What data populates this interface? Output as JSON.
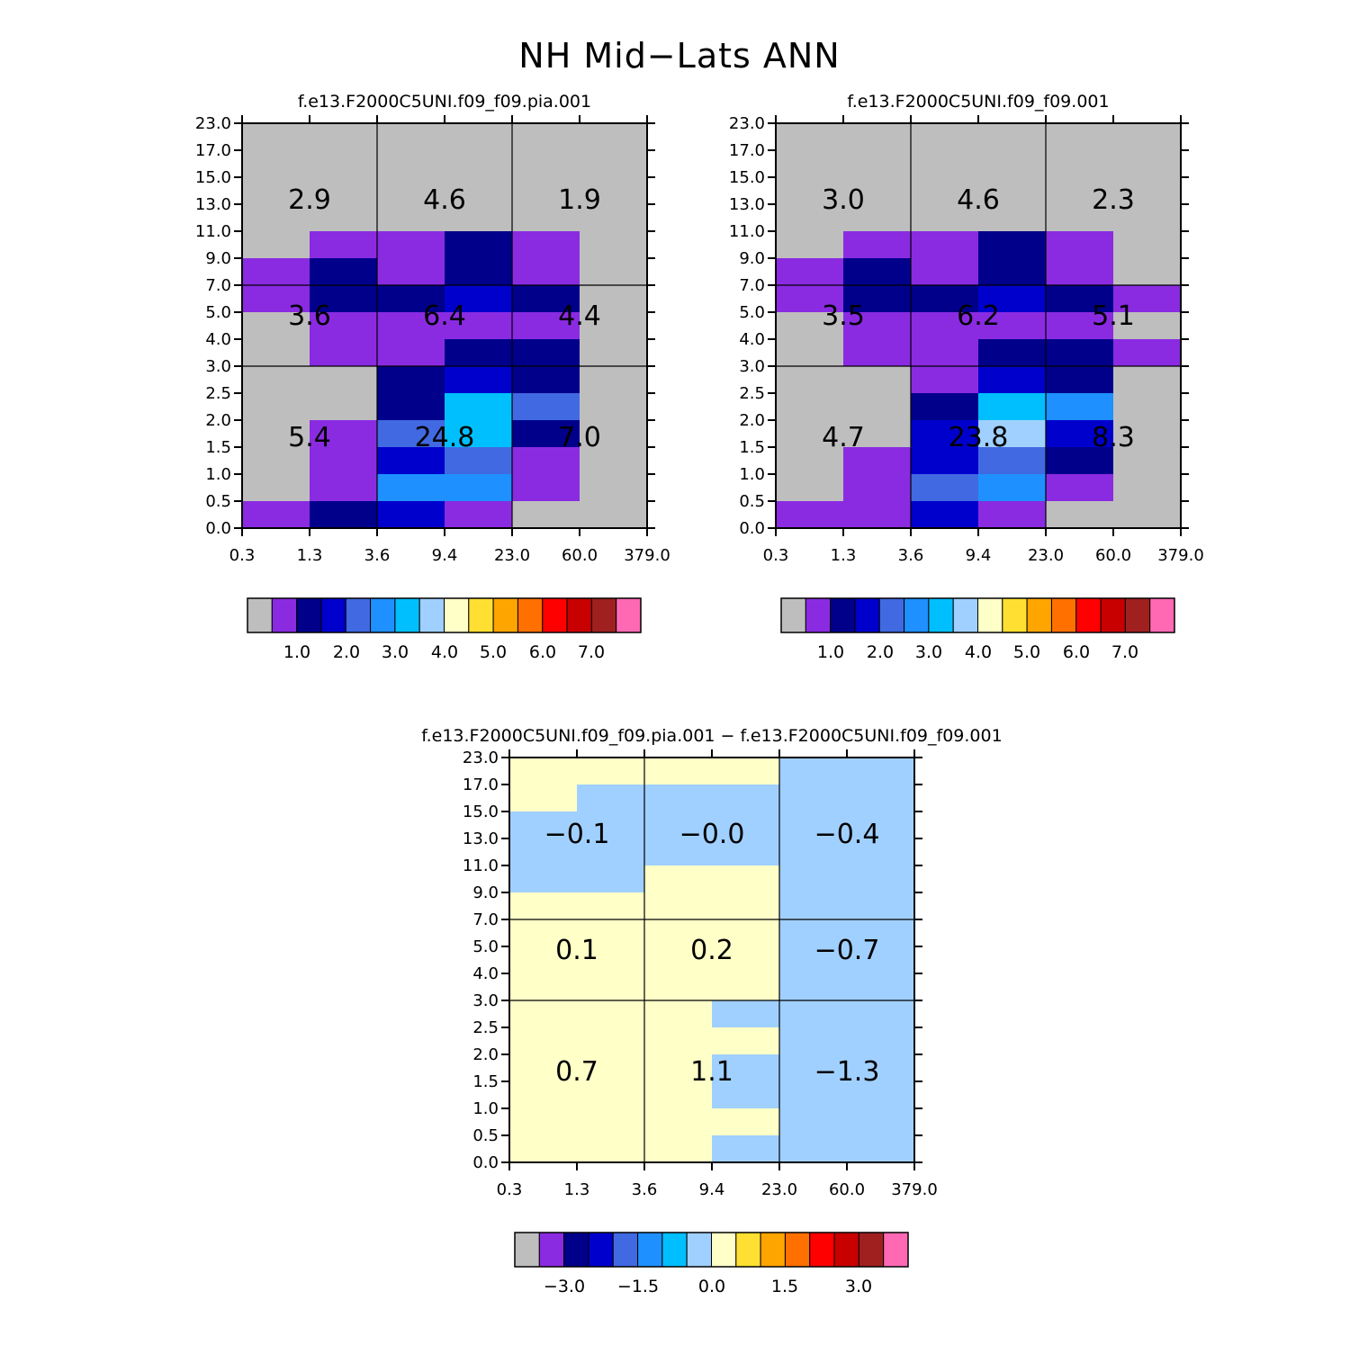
{
  "title": "NH Mid−Lats ANN",
  "colors": {
    "palette": [
      "#bebebe",
      "#8a2be2",
      "#00008b",
      "#0000cd",
      "#4169e1",
      "#1e90ff",
      "#00bfff",
      "#a0d0ff",
      "#ffffc8",
      "#ffe032",
      "#ffa500",
      "#ff7000",
      "#ff0000",
      "#c80000",
      "#a02020",
      "#ff69b4"
    ],
    "frame": "#000000"
  },
  "chart_data": [
    {
      "type": "heatmap",
      "id": "pia",
      "title": "f.e13.F2000C5UNI.f09_f09.pia.001",
      "x_ticks": [
        "0.3",
        "1.3",
        "3.6",
        "9.4",
        "23.0",
        "60.0",
        "379.0"
      ],
      "y_ticks": [
        "0.0",
        "0.5",
        "1.0",
        "1.5",
        "2.0",
        "2.5",
        "3.0",
        "4.0",
        "5.0",
        "7.0",
        "9.0",
        "11.0",
        "13.0",
        "15.0",
        "17.0",
        "23.0"
      ],
      "cells_top_down": [
        [
          0,
          0,
          0,
          0,
          0,
          0
        ],
        [
          0,
          0,
          0,
          0,
          0,
          0
        ],
        [
          0,
          0,
          0,
          0,
          0,
          0
        ],
        [
          0,
          0,
          0,
          0,
          0,
          0
        ],
        [
          0,
          1,
          1,
          2,
          1,
          0
        ],
        [
          1,
          2,
          1,
          2,
          1,
          0
        ],
        [
          1,
          2,
          2,
          3,
          2,
          0
        ],
        [
          0,
          1,
          1,
          1,
          1,
          0
        ],
        [
          0,
          1,
          1,
          2,
          2,
          0
        ],
        [
          0,
          0,
          2,
          3,
          2,
          0
        ],
        [
          0,
          0,
          2,
          6,
          4,
          0
        ],
        [
          0,
          1,
          4,
          6,
          2,
          0
        ],
        [
          0,
          1,
          3,
          4,
          1,
          0
        ],
        [
          0,
          1,
          5,
          5,
          1,
          0
        ],
        [
          1,
          2,
          3,
          1,
          0,
          0
        ]
      ],
      "region_values": [
        [
          "2.9",
          "4.6",
          "1.9"
        ],
        [
          "3.6",
          "6.4",
          "4.4"
        ],
        [
          "5.4",
          "24.8",
          "7.0"
        ]
      ],
      "colorbar_labels": [
        "1.0",
        "2.0",
        "3.0",
        "4.0",
        "5.0",
        "6.0",
        "7.0"
      ]
    },
    {
      "type": "heatmap",
      "id": "ctl",
      "title": "f.e13.F2000C5UNI.f09_f09.001",
      "x_ticks": [
        "0.3",
        "1.3",
        "3.6",
        "9.4",
        "23.0",
        "60.0",
        "379.0"
      ],
      "y_ticks": [
        "0.0",
        "0.5",
        "1.0",
        "1.5",
        "2.0",
        "2.5",
        "3.0",
        "4.0",
        "5.0",
        "7.0",
        "9.0",
        "11.0",
        "13.0",
        "15.0",
        "17.0",
        "23.0"
      ],
      "cells_top_down": [
        [
          0,
          0,
          0,
          0,
          0,
          0
        ],
        [
          0,
          0,
          0,
          0,
          0,
          0
        ],
        [
          0,
          0,
          0,
          0,
          0,
          0
        ],
        [
          0,
          0,
          0,
          0,
          0,
          0
        ],
        [
          0,
          1,
          1,
          2,
          1,
          0
        ],
        [
          1,
          2,
          1,
          2,
          1,
          0
        ],
        [
          1,
          2,
          2,
          3,
          2,
          1
        ],
        [
          0,
          1,
          1,
          1,
          1,
          0
        ],
        [
          0,
          1,
          1,
          2,
          2,
          1
        ],
        [
          0,
          0,
          1,
          3,
          2,
          0
        ],
        [
          0,
          0,
          2,
          6,
          5,
          0
        ],
        [
          0,
          0,
          3,
          7,
          3,
          0
        ],
        [
          0,
          1,
          3,
          4,
          2,
          0
        ],
        [
          0,
          1,
          4,
          5,
          1,
          0
        ],
        [
          1,
          1,
          3,
          1,
          0,
          0
        ]
      ],
      "region_values": [
        [
          "3.0",
          "4.6",
          "2.3"
        ],
        [
          "3.5",
          "6.2",
          "5.1"
        ],
        [
          "4.7",
          "23.8",
          "8.3"
        ]
      ],
      "colorbar_labels": [
        "1.0",
        "2.0",
        "3.0",
        "4.0",
        "5.0",
        "6.0",
        "7.0"
      ]
    },
    {
      "type": "heatmap",
      "id": "diff",
      "title": "f.e13.F2000C5UNI.f09_f09.pia.001 − f.e13.F2000C5UNI.f09_f09.001",
      "x_ticks": [
        "0.3",
        "1.3",
        "3.6",
        "9.4",
        "23.0",
        "60.0",
        "379.0"
      ],
      "y_ticks": [
        "0.0",
        "0.5",
        "1.0",
        "1.5",
        "2.0",
        "2.5",
        "3.0",
        "4.0",
        "5.0",
        "7.0",
        "9.0",
        "11.0",
        "13.0",
        "15.0",
        "17.0",
        "23.0"
      ],
      "cells_top_down": [
        [
          8,
          8,
          8,
          8,
          7,
          7
        ],
        [
          8,
          7,
          7,
          7,
          7,
          7
        ],
        [
          7,
          7,
          7,
          7,
          7,
          7
        ],
        [
          7,
          7,
          7,
          7,
          7,
          7
        ],
        [
          7,
          7,
          8,
          8,
          7,
          7
        ],
        [
          8,
          8,
          8,
          8,
          7,
          7
        ],
        [
          8,
          8,
          8,
          8,
          7,
          7
        ],
        [
          8,
          8,
          8,
          8,
          7,
          7
        ],
        [
          8,
          8,
          8,
          8,
          7,
          7
        ],
        [
          8,
          8,
          8,
          7,
          7,
          7
        ],
        [
          8,
          8,
          8,
          8,
          7,
          7
        ],
        [
          8,
          8,
          8,
          7,
          7,
          7
        ],
        [
          8,
          8,
          8,
          7,
          7,
          7
        ],
        [
          8,
          8,
          8,
          8,
          7,
          7
        ],
        [
          8,
          8,
          8,
          7,
          7,
          7
        ]
      ],
      "region_values": [
        [
          "−0.1",
          "−0.0",
          "−0.4"
        ],
        [
          "0.1",
          "0.2",
          "−0.7"
        ],
        [
          "0.7",
          "1.1",
          "−1.3"
        ]
      ],
      "colorbar_labels": [
        "−3.0",
        "−1.5",
        "0.0",
        "1.5",
        "3.0"
      ]
    }
  ]
}
